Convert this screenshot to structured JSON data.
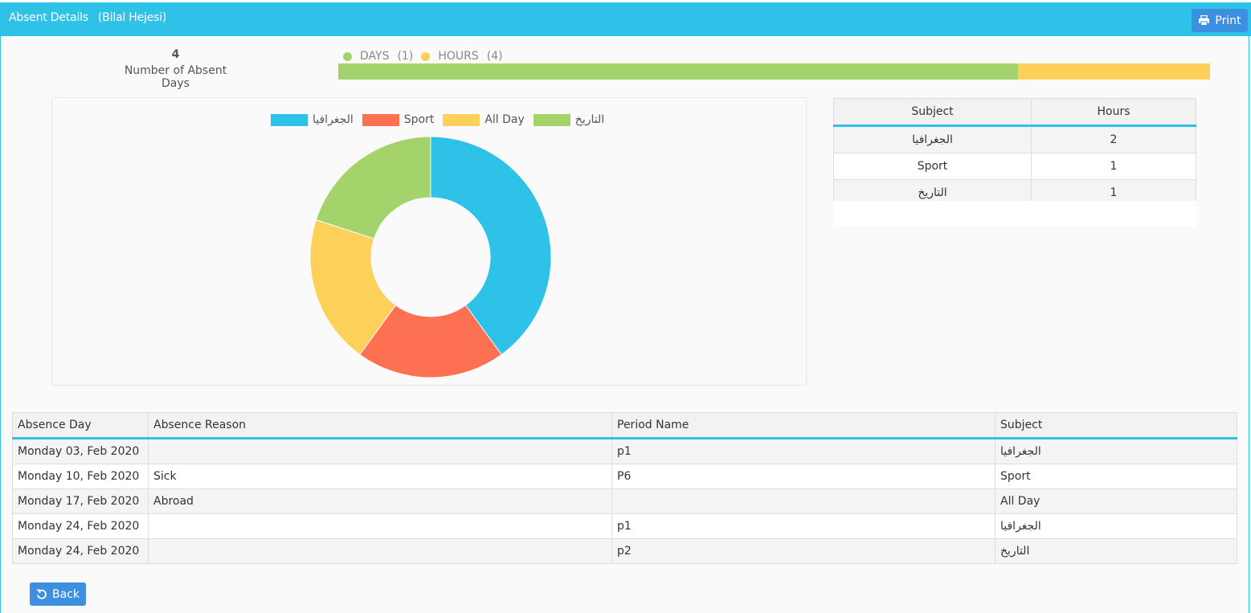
{
  "header": {
    "title": "Absent Details",
    "student": "(Bilal Hejesi)",
    "print_label": "Print"
  },
  "summary": {
    "count": "4",
    "label": "Number of Absent Days",
    "days_label": "DAYS",
    "days_count": "(1)",
    "hours_label": "HOURS",
    "hours_count": "(4)",
    "days_value": 1,
    "hours_value": 4,
    "days_fraction": 0.78,
    "hours_fraction": 0.22
  },
  "colors": {
    "header": "#2fc2e8",
    "button": "#3d8fe0",
    "days": "#a3d36a",
    "hours": "#fdd05a",
    "slice_blue": "#2fc2e8",
    "slice_red": "#fd7052",
    "slice_yellow": "#fdd05a",
    "slice_green": "#a3d36a"
  },
  "chart_data": {
    "type": "pie",
    "donut": true,
    "categories": [
      "الجغرافيا",
      "Sport",
      "All Day",
      "التاريخ"
    ],
    "values": [
      2,
      1,
      1,
      1
    ],
    "colors": [
      "#2fc2e8",
      "#fd7052",
      "#fdd05a",
      "#a3d36a"
    ],
    "legend_position": "top"
  },
  "hours_table": {
    "headers": [
      "Subject",
      "Hours"
    ],
    "rows": [
      [
        "الجغرافيا",
        "2"
      ],
      [
        "Sport",
        "1"
      ],
      [
        "التاريخ",
        "1"
      ]
    ]
  },
  "detail_table": {
    "headers": [
      "Absence Day",
      "Absence Reason",
      "Period Name",
      "Subject"
    ],
    "rows": [
      [
        "Monday 03, Feb 2020",
        "",
        "p1",
        "الجغرافيا"
      ],
      [
        "Monday 10, Feb 2020",
        "Sick",
        "P6",
        "Sport"
      ],
      [
        "Monday 17, Feb 2020",
        "Abroad",
        "",
        "All Day"
      ],
      [
        "Monday 24, Feb 2020",
        "",
        "p1",
        "الجغرافيا"
      ],
      [
        "Monday 24, Feb 2020",
        "",
        "p2",
        "التاريخ"
      ]
    ]
  },
  "footer": {
    "back_label": "Back"
  }
}
